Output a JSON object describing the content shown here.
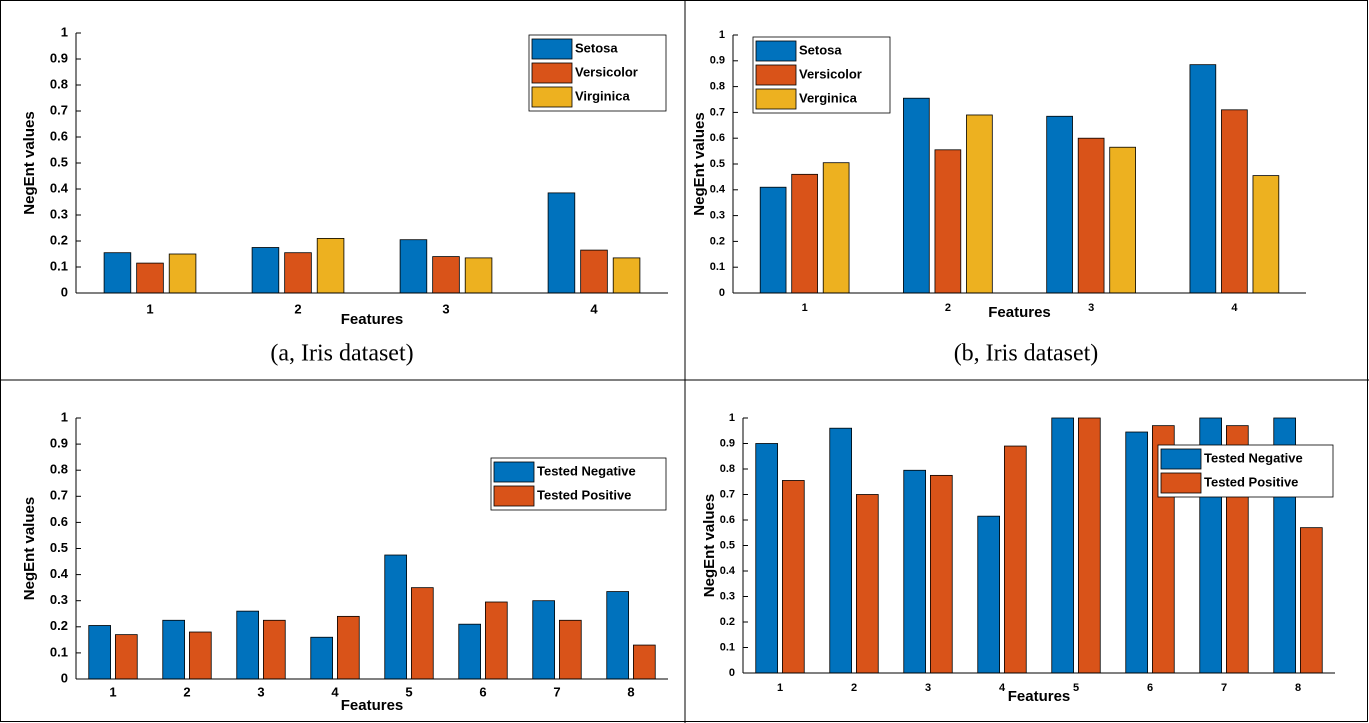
{
  "chart_data": [
    {
      "type": "bar",
      "caption": "(a, Iris dataset)",
      "x_label": "Features",
      "y_label": "NegEnt values",
      "categories": [
        1,
        2,
        3,
        4
      ],
      "series": [
        {
          "name": "Setosa",
          "color": "#0072bd",
          "values": [
            0.155,
            0.175,
            0.205,
            0.385
          ]
        },
        {
          "name": "Versicolor",
          "color": "#d95319",
          "values": [
            0.115,
            0.155,
            0.14,
            0.165
          ]
        },
        {
          "name": "Virginica",
          "color": "#edb120",
          "values": [
            0.15,
            0.21,
            0.135,
            0.135
          ]
        }
      ],
      "ylim": [
        0,
        1
      ],
      "yticks": [
        0,
        0.1,
        0.2,
        0.3,
        0.4,
        0.5,
        0.6,
        0.7,
        0.8,
        0.9,
        1
      ],
      "legend": "northeast"
    },
    {
      "type": "bar",
      "caption": "(b, Iris dataset)",
      "x_label": "Features",
      "y_label": "NegEnt values",
      "categories": [
        1,
        2,
        3,
        4
      ],
      "series": [
        {
          "name": "Setosa",
          "color": "#0072bd",
          "values": [
            0.41,
            0.755,
            0.685,
            0.885
          ]
        },
        {
          "name": "Versicolor",
          "color": "#d95319",
          "values": [
            0.46,
            0.555,
            0.6,
            0.71
          ]
        },
        {
          "name": "Verginica",
          "color": "#edb120",
          "values": [
            0.505,
            0.69,
            0.565,
            0.455
          ]
        }
      ],
      "ylim": [
        0,
        1
      ],
      "yticks": [
        0,
        0.1,
        0.2,
        0.3,
        0.4,
        0.5,
        0.6,
        0.7,
        0.8,
        0.9,
        1
      ],
      "legend": "northwest"
    },
    {
      "type": "bar",
      "x_label": "Features",
      "y_label": "NegEnt values",
      "categories": [
        1,
        2,
        3,
        4,
        5,
        6,
        7,
        8
      ],
      "series": [
        {
          "name": "Tested Negative",
          "color": "#0072bd",
          "values": [
            0.205,
            0.225,
            0.26,
            0.16,
            0.475,
            0.21,
            0.3,
            0.335
          ]
        },
        {
          "name": "Tested Positive",
          "color": "#d95319",
          "values": [
            0.17,
            0.18,
            0.225,
            0.24,
            0.35,
            0.295,
            0.225,
            0.13
          ]
        }
      ],
      "ylim": [
        0,
        1
      ],
      "yticks": [
        0,
        0.1,
        0.2,
        0.3,
        0.4,
        0.5,
        0.6,
        0.7,
        0.8,
        0.9,
        1
      ],
      "legend": "northeast"
    },
    {
      "type": "bar",
      "x_label": "Features",
      "y_label": "NegEnt values",
      "categories": [
        1,
        2,
        3,
        4,
        5,
        6,
        7,
        8
      ],
      "series": [
        {
          "name": "Tested Negative",
          "color": "#0072bd",
          "values": [
            0.9,
            0.96,
            0.795,
            0.615,
            1.0,
            0.945,
            1.0,
            1.0
          ]
        },
        {
          "name": "Tested Positive",
          "color": "#d95319",
          "values": [
            0.755,
            0.7,
            0.775,
            0.89,
            1.0,
            0.97,
            0.97,
            0.57
          ]
        }
      ],
      "ylim": [
        0,
        1
      ],
      "yticks": [
        0,
        0.1,
        0.2,
        0.3,
        0.4,
        0.5,
        0.6,
        0.7,
        0.8,
        0.9,
        1
      ],
      "legend": "northeast"
    }
  ]
}
